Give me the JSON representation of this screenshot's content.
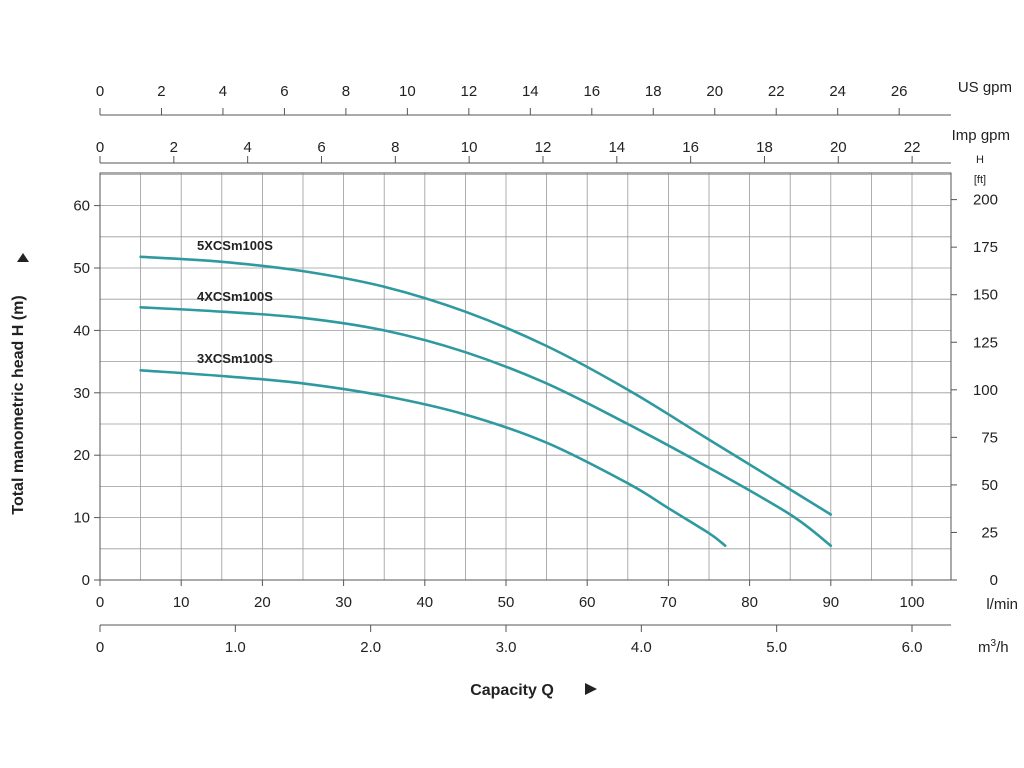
{
  "chart_data": {
    "type": "line",
    "ylabel": "Total manometric head H (m)",
    "xlabel": "Capacity Q",
    "x_unit": "l/min",
    "y_unit": "m",
    "xlim": [
      0,
      105
    ],
    "ylim": [
      0,
      65
    ],
    "x_ticks": [
      "0",
      "10",
      "20",
      "30",
      "40",
      "50",
      "60",
      "70",
      "80",
      "90",
      "100"
    ],
    "y_ticks": [
      "0",
      "10",
      "20",
      "30",
      "40",
      "50",
      "60"
    ],
    "grid": true,
    "series": [
      {
        "name": "5XCSm100S",
        "color": "#2e9aa0",
        "x": [
          5,
          15,
          25,
          35,
          45,
          55,
          65,
          75,
          85,
          90
        ],
        "y": [
          51.8,
          51,
          49.5,
          47,
          43,
          37.5,
          30.5,
          22.5,
          14.5,
          10.5
        ]
      },
      {
        "name": "4XCSm100S",
        "color": "#2e9aa0",
        "x": [
          5,
          15,
          25,
          35,
          45,
          55,
          65,
          75,
          85,
          90
        ],
        "y": [
          43.7,
          43,
          42,
          40,
          36.5,
          31.5,
          25,
          18,
          10.5,
          5.5
        ]
      },
      {
        "name": "3XCSm100S",
        "color": "#2e9aa0",
        "x": [
          5,
          15,
          25,
          35,
          45,
          55,
          65,
          70,
          75,
          77
        ],
        "y": [
          33.6,
          32.7,
          31.5,
          29.5,
          26.5,
          22,
          15.5,
          11.5,
          7.5,
          5.5
        ]
      }
    ],
    "secondary_axes": {
      "us_gpm": {
        "unit": "US gpm",
        "ticks": [
          "0",
          "2",
          "4",
          "6",
          "8",
          "10",
          "12",
          "14",
          "16",
          "18",
          "20",
          "22",
          "24",
          "26"
        ]
      },
      "imp_gpm": {
        "unit": "Imp gpm",
        "ticks": [
          "0",
          "2",
          "4",
          "6",
          "8",
          "10",
          "12",
          "14",
          "16",
          "18",
          "20",
          "22"
        ]
      },
      "head_ft": {
        "unit_line1": "H",
        "unit_line2": "[ft]",
        "ticks": [
          "0",
          "25",
          "50",
          "75",
          "100",
          "125",
          "150",
          "175",
          "200"
        ]
      },
      "m3h": {
        "unit_base": "m",
        "unit_sup": "3",
        "unit_tail": "/h",
        "ticks": [
          "0",
          "1.0",
          "2.0",
          "3.0",
          "4.0",
          "5.0",
          "6.0"
        ]
      }
    }
  }
}
